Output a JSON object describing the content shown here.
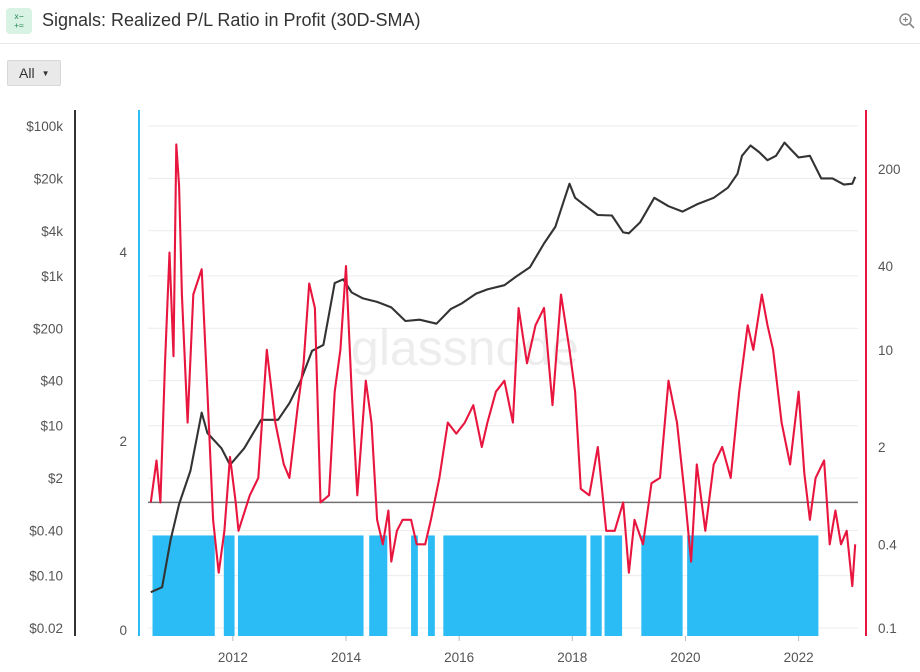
{
  "header": {
    "icon_glyph": "x−\n+=",
    "title": "Signals: Realized P/L Ratio in Profit (30D-SMA)",
    "zoom_icon": "zoom-in-icon"
  },
  "filter": {
    "label": "All",
    "caret": "▼"
  },
  "chart_data": {
    "type": "line",
    "title": "Signals: Realized P/L Ratio in Profit (30D-SMA)",
    "watermark": "glassnode",
    "x_range": [
      2010.5,
      2023.05
    ],
    "x_ticks": [
      "2012",
      "2014",
      "2016",
      "2018",
      "2020",
      "2022"
    ],
    "y_axes": {
      "price": {
        "scale": "log",
        "range": [
          0.02,
          100000
        ],
        "ticks": [
          "$100k",
          "$20k",
          "$4k",
          "$1k",
          "$200",
          "$40",
          "$10",
          "$2",
          "$0.40",
          "$0.10",
          "$0.02"
        ],
        "color": "#333333"
      },
      "signal": {
        "scale": "linear",
        "range": [
          0,
          5.5
        ],
        "ticks": [
          "4",
          "2",
          "0"
        ],
        "color": "#2bbcf5"
      },
      "ratio": {
        "scale": "log",
        "range": [
          0.1,
          400
        ],
        "ticks": [
          "200",
          "40",
          "10",
          "2",
          "0.4",
          "0.1"
        ],
        "color": "#e8163f"
      }
    },
    "threshold": {
      "axis": "ratio",
      "value": 0.8,
      "color": "#707070"
    },
    "signal_bands": {
      "value": 1,
      "color": "#2bbcf5",
      "ranges": [
        [
          2010.58,
          2011.68
        ],
        [
          2011.84,
          2012.03
        ],
        [
          2012.09,
          2014.31
        ],
        [
          2014.41,
          2014.73
        ],
        [
          2015.15,
          2015.27
        ],
        [
          2015.45,
          2015.57
        ],
        [
          2015.72,
          2018.25
        ],
        [
          2018.32,
          2018.52
        ],
        [
          2018.57,
          2018.88
        ],
        [
          2019.22,
          2019.95
        ],
        [
          2020.03,
          2022.35
        ]
      ]
    },
    "series": [
      {
        "name": "Price",
        "color": "#333333",
        "axis": "price",
        "x": [
          2010.55,
          2010.75,
          2010.9,
          2011.05,
          2011.25,
          2011.45,
          2011.55,
          2011.8,
          2011.95,
          2012.2,
          2012.5,
          2012.8,
          2013.0,
          2013.2,
          2013.4,
          2013.6,
          2013.8,
          2013.95,
          2014.1,
          2014.3,
          2014.55,
          2014.8,
          2015.05,
          2015.3,
          2015.6,
          2015.85,
          2016.05,
          2016.3,
          2016.5,
          2016.8,
          2017.0,
          2017.25,
          2017.5,
          2017.7,
          2017.85,
          2017.95,
          2018.05,
          2018.2,
          2018.45,
          2018.7,
          2018.9,
          2019.0,
          2019.2,
          2019.45,
          2019.7,
          2019.95,
          2020.2,
          2020.5,
          2020.75,
          2020.92,
          2021.0,
          2021.15,
          2021.3,
          2021.45,
          2021.6,
          2021.75,
          2021.85,
          2022.0,
          2022.2,
          2022.4,
          2022.6,
          2022.8,
          2022.95,
          2023.0
        ],
        "values": [
          0.06,
          0.07,
          0.3,
          0.9,
          2.5,
          15,
          8,
          5,
          3,
          5,
          12,
          12,
          20,
          40,
          100,
          120,
          800,
          900,
          600,
          500,
          450,
          380,
          250,
          260,
          230,
          360,
          430,
          580,
          660,
          750,
          970,
          1300,
          2700,
          4500,
          10000,
          17000,
          11000,
          9000,
          6500,
          6400,
          3800,
          3700,
          5200,
          11000,
          8500,
          7200,
          9000,
          11000,
          15000,
          23000,
          40000,
          55000,
          45000,
          35000,
          40000,
          60000,
          50000,
          38000,
          40000,
          20000,
          20000,
          16500,
          17000,
          21000
        ]
      },
      {
        "name": "Realized P/L Ratio in Profit (30D-SMA)",
        "color": "#e8163f",
        "axis": "ratio",
        "x": [
          2010.55,
          2010.65,
          2010.72,
          2010.8,
          2010.88,
          2010.95,
          2011.0,
          2011.05,
          2011.1,
          2011.2,
          2011.3,
          2011.45,
          2011.55,
          2011.65,
          2011.75,
          2011.85,
          2011.95,
          2012.05,
          2012.1,
          2012.3,
          2012.45,
          2012.6,
          2012.75,
          2012.9,
          2013.0,
          2013.15,
          2013.25,
          2013.35,
          2013.45,
          2013.55,
          2013.7,
          2013.8,
          2013.9,
          2014.0,
          2014.1,
          2014.2,
          2014.35,
          2014.45,
          2014.55,
          2014.65,
          2014.75,
          2014.8,
          2014.9,
          2015.0,
          2015.15,
          2015.25,
          2015.4,
          2015.5,
          2015.65,
          2015.8,
          2015.95,
          2016.1,
          2016.25,
          2016.4,
          2016.5,
          2016.65,
          2016.8,
          2016.95,
          2017.05,
          2017.2,
          2017.35,
          2017.5,
          2017.65,
          2017.8,
          2017.95,
          2018.05,
          2018.15,
          2018.3,
          2018.45,
          2018.6,
          2018.75,
          2018.9,
          2019.0,
          2019.1,
          2019.25,
          2019.4,
          2019.55,
          2019.7,
          2019.85,
          2020.0,
          2020.1,
          2020.2,
          2020.35,
          2020.5,
          2020.65,
          2020.8,
          2020.95,
          2021.1,
          2021.2,
          2021.35,
          2021.45,
          2021.55,
          2021.7,
          2021.85,
          2022.0,
          2022.1,
          2022.2,
          2022.3,
          2022.45,
          2022.55,
          2022.65,
          2022.75,
          2022.85,
          2022.95,
          2023.0
        ],
        "values": [
          0.8,
          1.6,
          0.8,
          8,
          50,
          9,
          300,
          150,
          25,
          3,
          25,
          38,
          5,
          0.6,
          0.25,
          0.5,
          1.7,
          0.8,
          0.5,
          0.9,
          1.2,
          10,
          3,
          1.5,
          1.2,
          4,
          8,
          30,
          20,
          0.8,
          0.9,
          5,
          10,
          40,
          5,
          0.9,
          6,
          3,
          0.6,
          0.4,
          0.7,
          0.3,
          0.5,
          0.6,
          0.6,
          0.4,
          0.4,
          0.6,
          1.2,
          3,
          2.5,
          3,
          4,
          2,
          3,
          5,
          6,
          3,
          20,
          8,
          15,
          20,
          4,
          25,
          10,
          5,
          1,
          0.9,
          2,
          0.5,
          0.5,
          0.8,
          0.25,
          0.6,
          0.4,
          1.1,
          1.2,
          6,
          3,
          0.8,
          0.3,
          1.5,
          0.5,
          1.5,
          2,
          1.2,
          5,
          15,
          10,
          25,
          15,
          10,
          3,
          1.5,
          5,
          1.3,
          0.6,
          1.2,
          1.6,
          0.4,
          0.7,
          0.4,
          0.5,
          0.2,
          0.4
        ]
      }
    ],
    "grid": true,
    "legend": "none"
  }
}
